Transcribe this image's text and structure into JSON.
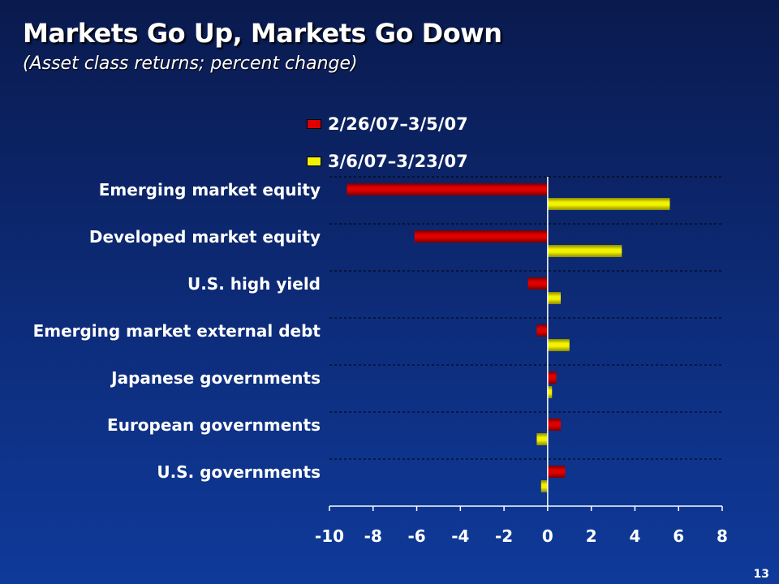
{
  "title": "Markets Go Up, Markets Go Down",
  "subtitle": "(Asset class returns; percent change)",
  "page_number": "13",
  "colors": {
    "series1": "#e00000",
    "series2": "#f2f200",
    "gridline": "#000000",
    "text": "#ffffff"
  },
  "legend": [
    {
      "label": "2/26/07–3/5/07",
      "color": "#e00000"
    },
    {
      "label": "3/6/07–3/23/07",
      "color": "#f2f200"
    }
  ],
  "chart_data": {
    "type": "bar",
    "orientation": "horizontal",
    "categories": [
      "Emerging market equity",
      "Developed market equity",
      "U.S. high yield",
      "Emerging market external debt",
      "Japanese governments",
      "European governments",
      "U.S. governments"
    ],
    "series": [
      {
        "name": "2/26/07–3/5/07",
        "values": [
          -9.2,
          -6.1,
          -0.9,
          -0.5,
          0.4,
          0.6,
          0.8
        ]
      },
      {
        "name": "3/6/07–3/23/07",
        "values": [
          5.6,
          3.4,
          0.6,
          1.0,
          0.2,
          -0.5,
          -0.3
        ]
      }
    ],
    "xlim": [
      -10,
      8
    ],
    "xticks": [
      "-10",
      "-8",
      "-6",
      "-4",
      "-2",
      "0",
      "2",
      "4",
      "6",
      "8"
    ],
    "grid": true,
    "legend_position": "top"
  }
}
